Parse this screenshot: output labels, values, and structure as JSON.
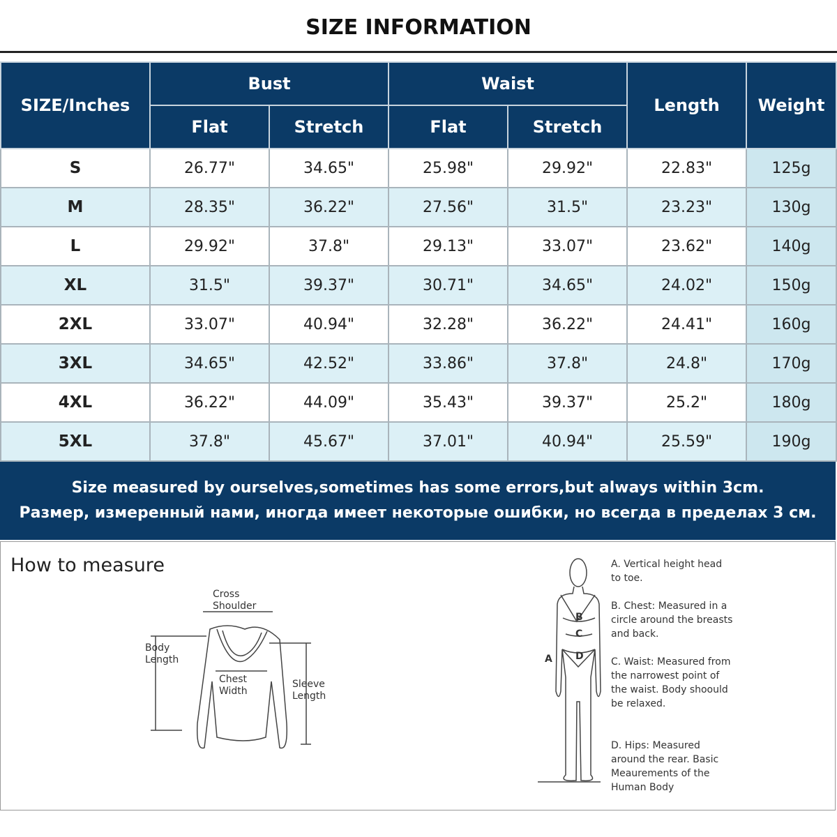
{
  "title": "SIZE INFORMATION",
  "table": {
    "headers": {
      "size": "SIZE/Inches",
      "bust": "Bust",
      "waist": "Waist",
      "length": "Length",
      "weight": "Weight",
      "flat": "Flat",
      "stretch": "Stretch"
    },
    "rows": [
      [
        "S",
        "26.77\"",
        "34.65\"",
        "25.98\"",
        "29.92\"",
        "22.83\"",
        "125g"
      ],
      [
        "M",
        "28.35\"",
        "36.22\"",
        "27.56\"",
        "31.5\"",
        "23.23\"",
        "130g"
      ],
      [
        "L",
        "29.92\"",
        "37.8\"",
        "29.13\"",
        "33.07\"",
        "23.62\"",
        "140g"
      ],
      [
        "XL",
        "31.5\"",
        "39.37\"",
        "30.71\"",
        "34.65\"",
        "24.02\"",
        "150g"
      ],
      [
        "2XL",
        "33.07\"",
        "40.94\"",
        "32.28\"",
        "36.22\"",
        "24.41\"",
        "160g"
      ],
      [
        "3XL",
        "34.65\"",
        "42.52\"",
        "33.86\"",
        "37.8\"",
        "24.8\"",
        "170g"
      ],
      [
        "4XL",
        "36.22\"",
        "44.09\"",
        "35.43\"",
        "39.37\"",
        "25.2\"",
        "180g"
      ],
      [
        "5XL",
        "37.8\"",
        "45.67\"",
        "37.01\"",
        "40.94\"",
        "25.59\"",
        "190g"
      ]
    ]
  },
  "banner": {
    "en": "Size measured by ourselves,sometimes has some errors,but always within 3cm.",
    "ru": "Размер, измеренный нами, иногда имеет некоторые ошибки, но всегда в пределах 3 см."
  },
  "measure": {
    "heading": "How to measure",
    "sweater_labels": {
      "cross_shoulder": "Cross Shoulder",
      "body_length": "Body Length",
      "chest_width": "Chest Width",
      "sleeve_length": "Sleeve Length"
    },
    "body_letters": {
      "a": "A",
      "b": "B",
      "c": "C",
      "d": "D"
    },
    "notes": [
      "A. Vertical height head to toe.",
      "B. Chest: Measured in a circle around the breasts and back.",
      "C. Waist: Measured from the narrowest point of the waist. Body shoould be relaxed.",
      "D. Hips: Measured around the rear. Basic Meaurements of the Human Body"
    ]
  },
  "colors": {
    "header": "#0b3a66",
    "alt_row": "#dcf0f6",
    "weight_col": "#cde7ef"
  }
}
